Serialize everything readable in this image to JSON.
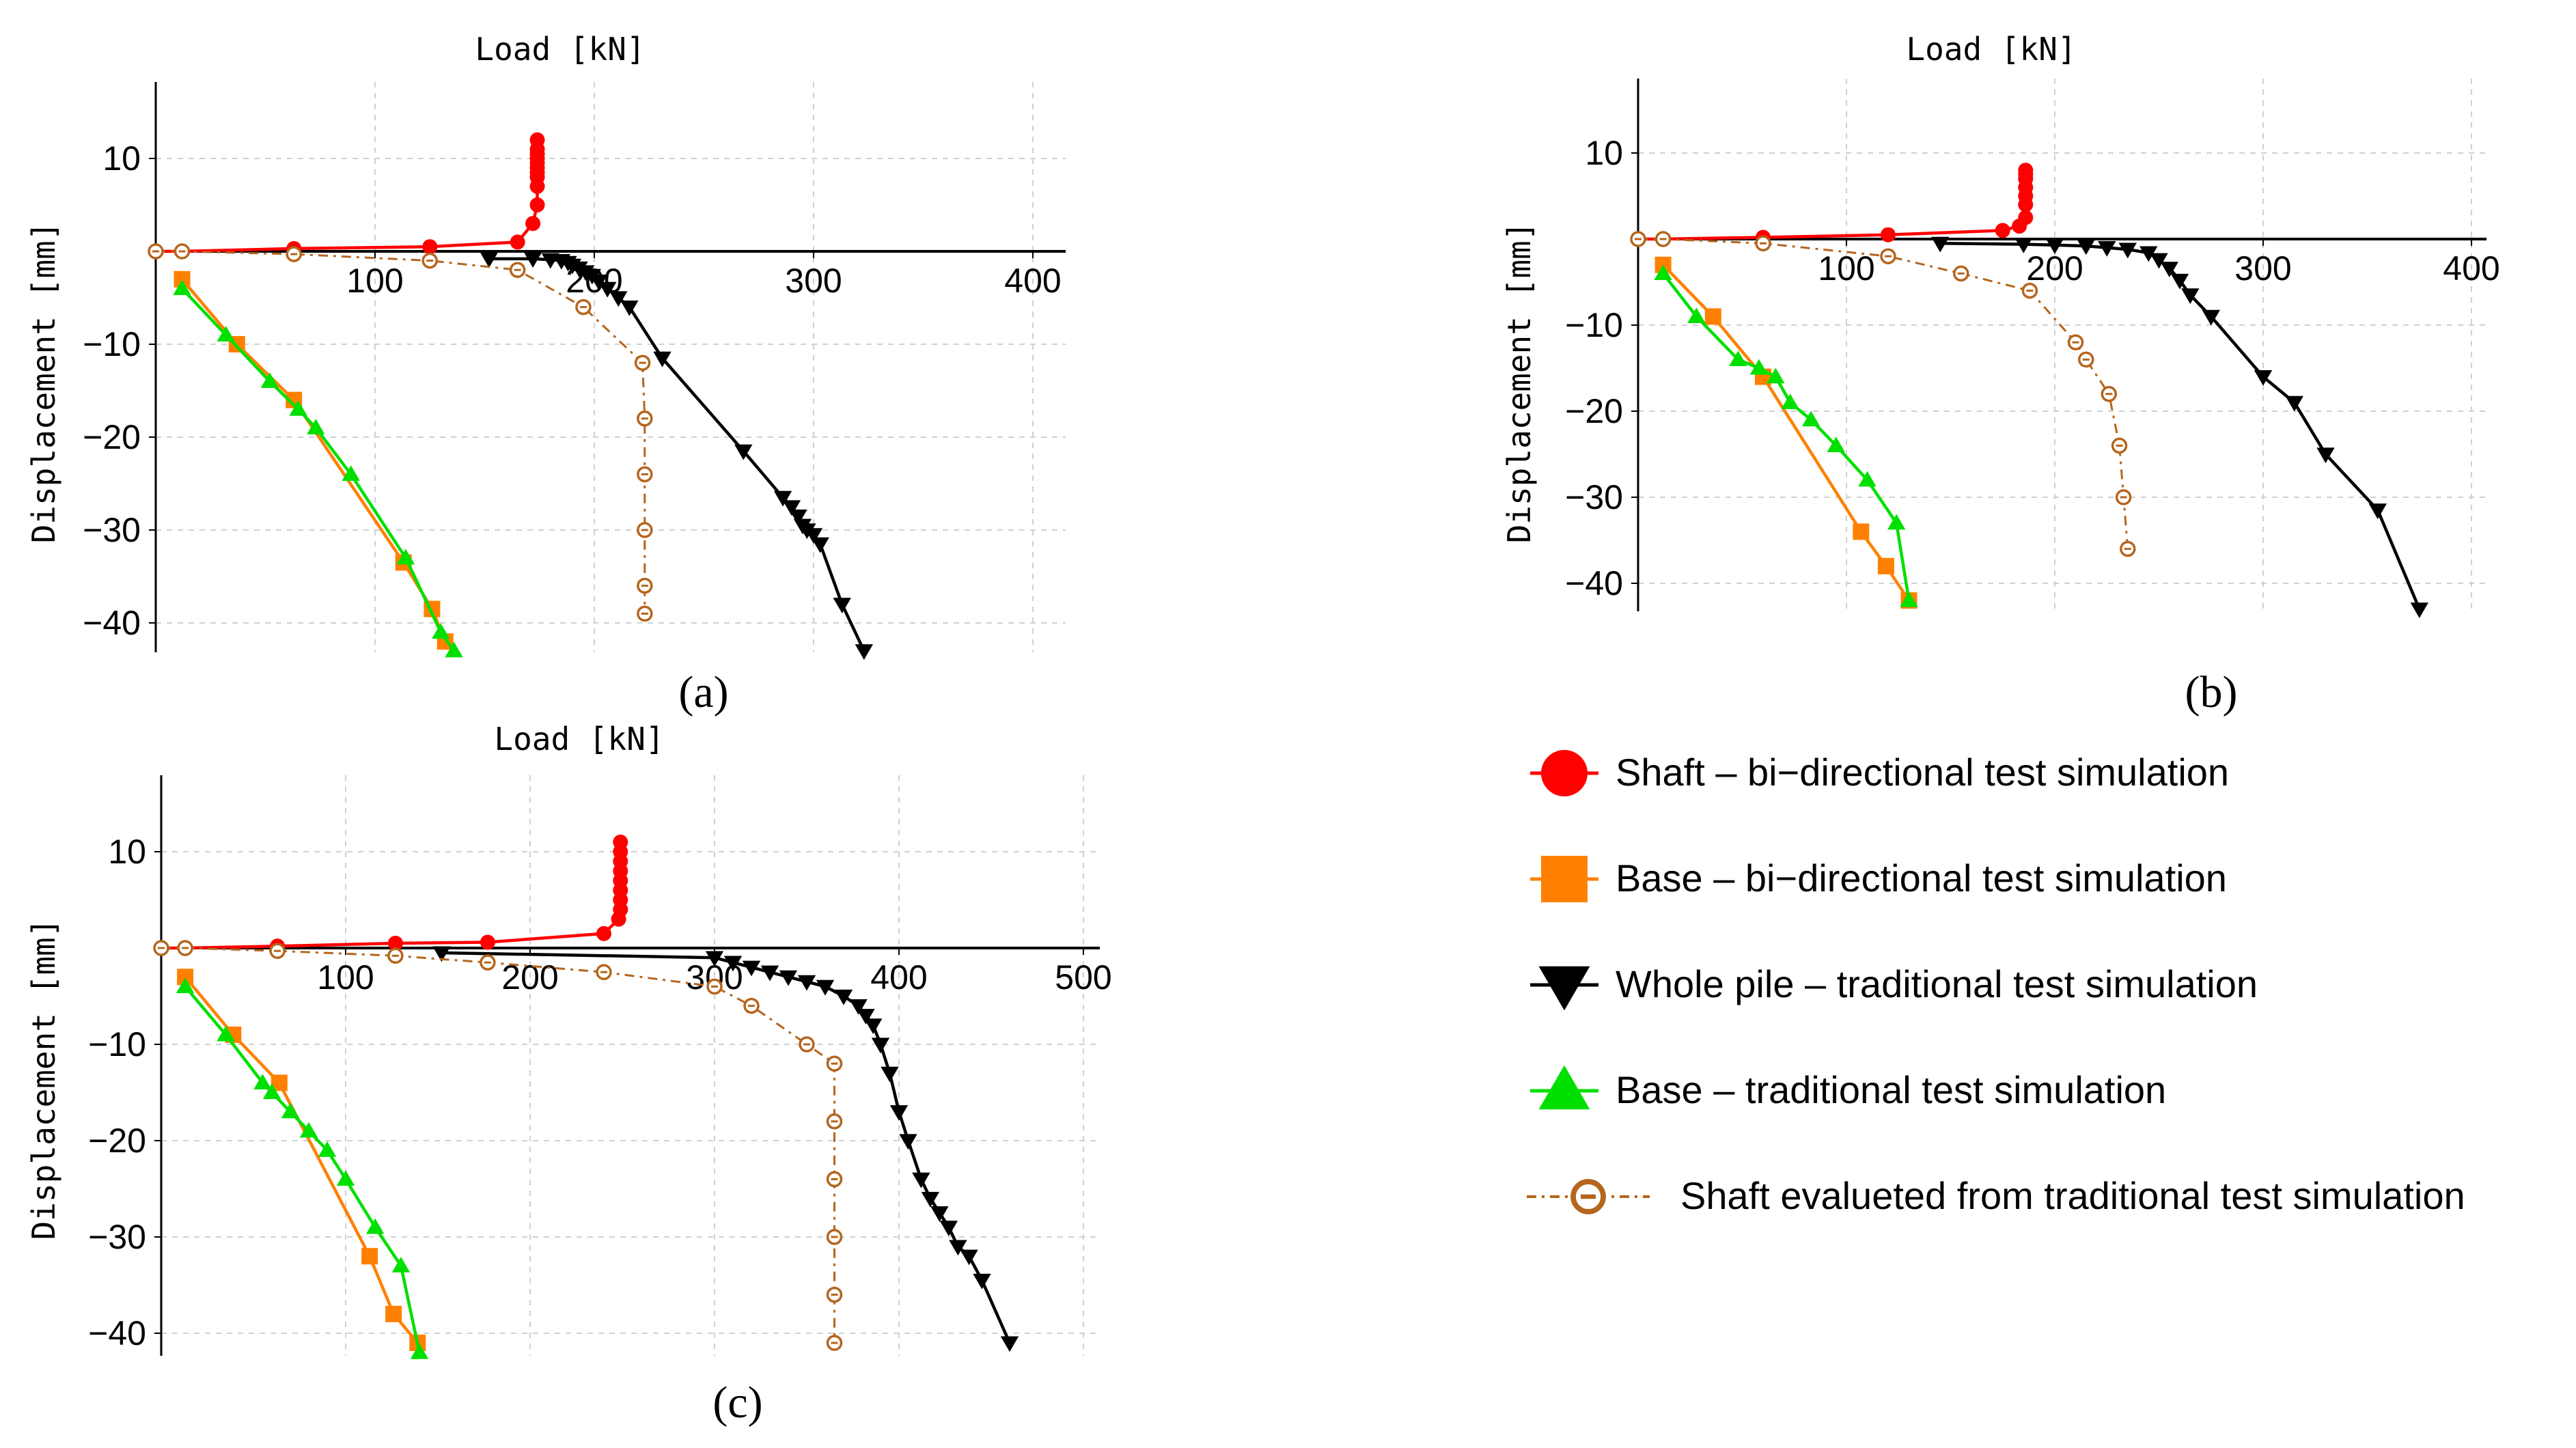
{
  "series_styles": [
    {
      "key": "shaft_bi",
      "color": "#ff0000",
      "marker": "circle",
      "line": "solid"
    },
    {
      "key": "base_bi",
      "color": "#ff8000",
      "marker": "square",
      "line": "solid"
    },
    {
      "key": "whole_trad",
      "color": "#000000",
      "marker": "triangle-down",
      "line": "solid"
    },
    {
      "key": "base_trad",
      "color": "#00e000",
      "marker": "triangle-up",
      "line": "solid"
    },
    {
      "key": "shaft_eval",
      "color": "#b5651d",
      "marker": "open-circle",
      "line": "dashdot"
    }
  ],
  "legend": {
    "items": [
      {
        "key": "shaft_bi",
        "label": "Shaft – bi−directional test simulation"
      },
      {
        "key": "base_bi",
        "label": "Base – bi−directional test simulation"
      },
      {
        "key": "whole_trad",
        "label": "Whole pile – traditional test simulation"
      },
      {
        "key": "base_trad",
        "label": "Base – traditional test simulation"
      },
      {
        "key": "shaft_eval",
        "label": "Shaft evalueted from traditional test simulation"
      }
    ]
  },
  "chart_data": [
    {
      "type": "line",
      "panel_label": "(a)",
      "xlabel": "Load [kN]",
      "ylabel": "Displacement [mm]",
      "xlim": [
        0,
        400
      ],
      "ylim": [
        -43,
        18
      ],
      "xticks": [
        100,
        200,
        300,
        400
      ],
      "xtick_labels": [
        "100",
        "200",
        "300",
        "400"
      ],
      "yticks": [
        10,
        -10,
        -20,
        -30,
        -40
      ],
      "ytick_labels": [
        "10",
        "−10",
        "−20",
        "−30",
        "−40"
      ],
      "xgrid": [
        100,
        200,
        300,
        400
      ],
      "ygrid": [
        10,
        -10,
        -20,
        -30,
        -40
      ],
      "series": [
        {
          "key": "shaft_bi",
          "x": [
            0,
            12,
            63,
            125,
            165,
            172,
            174,
            174,
            174,
            174,
            174,
            174,
            174,
            174,
            174,
            174
          ],
          "y": [
            0,
            0,
            0.3,
            0.5,
            1,
            3,
            5,
            7,
            8,
            8.5,
            9,
            9.5,
            10,
            10.5,
            11,
            12
          ]
        },
        {
          "key": "base_bi",
          "x": [
            12,
            37,
            63,
            113,
            126,
            132
          ],
          "y": [
            -3,
            -10,
            -16,
            -33.5,
            -38.5,
            -42
          ]
        },
        {
          "key": "whole_trad",
          "x": [
            152,
            172,
            180,
            185,
            188,
            190,
            193,
            196,
            199,
            202,
            206,
            211,
            216,
            231,
            268,
            286,
            290,
            293,
            295,
            297,
            300,
            303,
            313,
            323
          ],
          "y": [
            -0.8,
            -0.8,
            -0.9,
            -1,
            -1.2,
            -1.5,
            -1.8,
            -2.2,
            -2.6,
            -3.2,
            -4,
            -5,
            -6,
            -11.5,
            -21.5,
            -26.5,
            -27.5,
            -28.5,
            -29.5,
            -30,
            -30.5,
            -31.5,
            -38,
            -43
          ]
        },
        {
          "key": "base_trad",
          "x": [
            12,
            32,
            52,
            65,
            73,
            89,
            114,
            130,
            136
          ],
          "y": [
            -4,
            -9,
            -14,
            -17,
            -19,
            -24,
            -33,
            -41,
            -43
          ]
        },
        {
          "key": "shaft_eval",
          "x": [
            0,
            12,
            63,
            125,
            165,
            195,
            222,
            223,
            223,
            223,
            223,
            223
          ],
          "y": [
            0,
            0,
            -0.3,
            -1,
            -2,
            -6,
            -12,
            -18,
            -24,
            -30,
            -36,
            -39
          ]
        }
      ]
    },
    {
      "type": "line",
      "panel_label": "(b)",
      "xlabel": "Load [kN]",
      "ylabel": "Displacement [mm]",
      "xlim": [
        0,
        400
      ],
      "ylim": [
        -43,
        18
      ],
      "xticks": [
        100,
        200,
        300,
        400
      ],
      "xtick_labels": [
        "100",
        "200",
        "300",
        "400"
      ],
      "yticks": [
        10,
        -10,
        -20,
        -30,
        -40
      ],
      "ytick_labels": [
        "10",
        "−10",
        "−20",
        "−30",
        "−40"
      ],
      "xgrid": [
        100,
        200,
        300,
        400
      ],
      "ygrid": [
        10,
        -10,
        -20,
        -30,
        -40
      ],
      "series": [
        {
          "key": "shaft_bi",
          "x": [
            0,
            12,
            60,
            120,
            175,
            183,
            186,
            186,
            186,
            186,
            186,
            186,
            186
          ],
          "y": [
            0,
            0,
            0.2,
            0.5,
            1,
            1.5,
            2.5,
            4,
            5,
            6,
            7,
            7.5,
            8
          ]
        },
        {
          "key": "base_bi",
          "x": [
            12,
            36,
            60,
            107,
            119,
            130
          ],
          "y": [
            -3,
            -9,
            -16,
            -34,
            -38,
            -42
          ]
        },
        {
          "key": "whole_trad",
          "x": [
            145,
            185,
            200,
            215,
            225,
            235,
            245,
            250,
            255,
            260,
            265,
            275,
            300,
            315,
            330,
            355,
            375
          ],
          "y": [
            -0.5,
            -0.6,
            -0.7,
            -0.8,
            -1,
            -1.2,
            -1.6,
            -2.4,
            -3.4,
            -4.8,
            -6.5,
            -9,
            -16,
            -19,
            -25,
            -31.5,
            -43
          ]
        },
        {
          "key": "base_trad",
          "x": [
            12,
            28,
            48,
            58,
            66,
            73,
            83,
            95,
            110,
            124,
            130
          ],
          "y": [
            -4,
            -9,
            -14,
            -15,
            -16,
            -19,
            -21,
            -24,
            -28,
            -33,
            -42
          ]
        },
        {
          "key": "shaft_eval",
          "x": [
            0,
            12,
            60,
            120,
            155,
            188,
            210,
            215,
            226,
            231,
            233,
            235
          ],
          "y": [
            0,
            0,
            -0.5,
            -2,
            -4,
            -6,
            -12,
            -14,
            -18,
            -24,
            -30,
            -36
          ]
        }
      ]
    },
    {
      "type": "line",
      "panel_label": "(c)",
      "xlabel": "Load [kN]",
      "ylabel": "Displacement [mm]",
      "xlim": [
        0,
        500
      ],
      "ylim": [
        -42,
        18
      ],
      "xticks": [
        100,
        200,
        300,
        400,
        500
      ],
      "xtick_labels": [
        "100",
        "200",
        "300",
        "400",
        "500"
      ],
      "yticks": [
        10,
        -10,
        -20,
        -30,
        -40
      ],
      "ytick_labels": [
        "10",
        "−10",
        "−20",
        "−30",
        "−40"
      ],
      "xgrid": [
        100,
        200,
        300,
        400,
        500
      ],
      "ygrid": [
        10,
        -10,
        -20,
        -30,
        -40
      ],
      "series": [
        {
          "key": "shaft_bi",
          "x": [
            0,
            13,
            63,
            127,
            177,
            240,
            248,
            249,
            249,
            249,
            249,
            249,
            249,
            249,
            249
          ],
          "y": [
            0,
            0,
            0.2,
            0.5,
            0.6,
            1.5,
            3,
            4,
            5,
            6,
            7,
            8,
            9,
            10,
            11
          ]
        },
        {
          "key": "base_bi",
          "x": [
            13,
            39,
            64,
            113,
            126,
            139
          ],
          "y": [
            -3,
            -9,
            -14,
            -32,
            -38,
            -41
          ]
        },
        {
          "key": "whole_trad",
          "x": [
            152,
            300,
            310,
            320,
            330,
            340,
            350,
            360,
            370,
            378,
            382,
            386,
            390,
            395,
            400,
            405,
            412,
            417,
            422,
            427,
            432,
            438,
            445,
            460
          ],
          "y": [
            -0.5,
            -1,
            -1.5,
            -2,
            -2.5,
            -3,
            -3.5,
            -4,
            -5,
            -6,
            -7,
            -8,
            -10,
            -13,
            -17,
            -20,
            -24,
            -26,
            -27.5,
            -29,
            -31,
            -32,
            -34.5,
            -41
          ]
        },
        {
          "key": "base_trad",
          "x": [
            13,
            35,
            55,
            60,
            70,
            80,
            90,
            100,
            116,
            130,
            140
          ],
          "y": [
            -4,
            -9,
            -14,
            -15,
            -17,
            -19,
            -21,
            -24,
            -29,
            -33,
            -42
          ]
        },
        {
          "key": "shaft_eval",
          "x": [
            0,
            13,
            63,
            127,
            177,
            240,
            300,
            320,
            350,
            365,
            365,
            365,
            365,
            365,
            365
          ],
          "y": [
            0,
            0,
            -0.3,
            -0.8,
            -1.5,
            -2.5,
            -4,
            -6,
            -10,
            -12,
            -18,
            -24,
            -30,
            -36,
            -41
          ]
        }
      ]
    }
  ]
}
